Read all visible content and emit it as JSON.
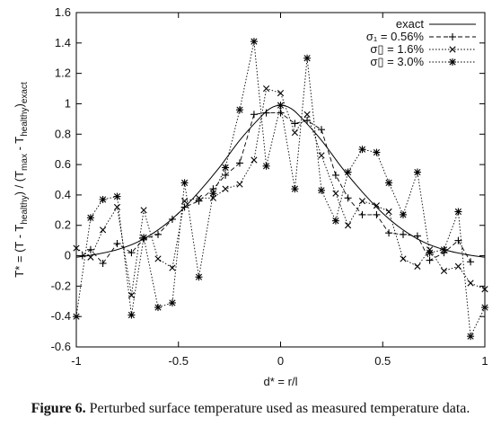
{
  "chart_data": {
    "type": "line",
    "xlabel": "d* = r/l",
    "ylabel_parts": {
      "base": "T* = (T - T",
      "sub1": "healthy",
      "mid": ") / (T",
      "sub2": "max",
      "mid2": " - T",
      "sub3": "healthy",
      "end": ")",
      "sub4": "exact"
    },
    "xlim": [
      -1,
      1
    ],
    "ylim": [
      -0.6,
      1.6
    ],
    "xticks": [
      -1,
      -0.5,
      0,
      0.5,
      1
    ],
    "xtick_labels": [
      "-1",
      "-0.5",
      "0",
      "0.5",
      "1"
    ],
    "yticks": [
      -0.6,
      -0.4,
      -0.2,
      0,
      0.2,
      0.4,
      0.6,
      0.8,
      1,
      1.2,
      1.4,
      1.6
    ],
    "ytick_labels": [
      "-0.6",
      "-0.4",
      "-0.2",
      "0",
      "0.2",
      "0.4",
      "0.6",
      "0.8",
      "1",
      "1.2",
      "1.4",
      "1.6"
    ],
    "grid": false,
    "legend_position": "top-right",
    "series": [
      {
        "name": "exact",
        "style": "solid",
        "marker": "none",
        "x": [
          -1,
          -0.9,
          -0.8,
          -0.7,
          -0.6,
          -0.5,
          -0.4,
          -0.3,
          -0.2,
          -0.1,
          -0.05,
          0,
          0.05,
          0.1,
          0.2,
          0.3,
          0.4,
          0.5,
          0.6,
          0.7,
          0.8,
          0.9,
          1
        ],
        "y": [
          -0.01,
          0.01,
          0.04,
          0.09,
          0.17,
          0.28,
          0.42,
          0.58,
          0.76,
          0.91,
          0.97,
          0.99,
          0.97,
          0.91,
          0.76,
          0.58,
          0.42,
          0.28,
          0.17,
          0.09,
          0.04,
          0.01,
          -0.01
        ]
      },
      {
        "name": "σ₁ = 0.56%",
        "style": "dashed",
        "marker": "plus",
        "x": [
          -0.97,
          -0.93,
          -0.87,
          -0.8,
          -0.73,
          -0.67,
          -0.6,
          -0.53,
          -0.47,
          -0.4,
          -0.33,
          -0.27,
          -0.2,
          -0.13,
          -0.07,
          0,
          0.07,
          0.13,
          0.2,
          0.27,
          0.33,
          0.4,
          0.47,
          0.53,
          0.6,
          0.67,
          0.73,
          0.8,
          0.87,
          0.93
        ],
        "y": [
          0.0,
          0.04,
          -0.05,
          0.08,
          0.02,
          0.11,
          0.14,
          0.24,
          0.32,
          0.36,
          0.44,
          0.53,
          0.61,
          0.93,
          0.94,
          0.94,
          0.87,
          0.89,
          0.83,
          0.53,
          0.38,
          0.27,
          0.27,
          0.15,
          0.14,
          0.13,
          -0.03,
          0.02,
          0.1,
          -0.04
        ]
      },
      {
        "name": "σ▯ = 1.6%",
        "style": "dotted",
        "marker": "x",
        "x": [
          -1,
          -0.93,
          -0.87,
          -0.8,
          -0.73,
          -0.67,
          -0.6,
          -0.53,
          -0.47,
          -0.4,
          -0.33,
          -0.27,
          -0.2,
          -0.13,
          -0.07,
          0,
          0.07,
          0.13,
          0.2,
          0.27,
          0.33,
          0.4,
          0.47,
          0.53,
          0.6,
          0.67,
          0.73,
          0.8,
          0.87,
          0.93,
          1
        ],
        "y": [
          0.05,
          -0.01,
          0.17,
          0.32,
          -0.26,
          0.3,
          -0.02,
          -0.08,
          0.36,
          0.38,
          0.38,
          0.44,
          0.47,
          0.63,
          1.1,
          1.07,
          0.81,
          0.93,
          0.66,
          0.41,
          0.2,
          0.36,
          0.33,
          0.29,
          -0.02,
          -0.07,
          0.04,
          -0.1,
          -0.07,
          -0.18,
          -0.22
        ]
      },
      {
        "name": "σ▯ = 3.0%",
        "style": "dotted",
        "marker": "star",
        "x": [
          -1,
          -0.93,
          -0.87,
          -0.8,
          -0.73,
          -0.67,
          -0.6,
          -0.53,
          -0.47,
          -0.4,
          -0.33,
          -0.27,
          -0.2,
          -0.13,
          -0.07,
          0,
          0.07,
          0.13,
          0.2,
          0.27,
          0.33,
          0.4,
          0.47,
          0.53,
          0.6,
          0.67,
          0.73,
          0.8,
          0.87,
          0.93,
          1
        ],
        "y": [
          -0.4,
          0.25,
          0.37,
          0.39,
          -0.39,
          0.12,
          -0.34,
          -0.31,
          0.48,
          -0.14,
          0.41,
          0.58,
          0.96,
          1.41,
          0.59,
          0.99,
          0.44,
          1.3,
          0.43,
          0.23,
          0.55,
          0.7,
          0.68,
          0.48,
          0.27,
          0.55,
          0.02,
          0.04,
          0.29,
          -0.53,
          -0.34
        ]
      }
    ]
  },
  "caption": {
    "label": "Figure 6.",
    "text": " Perturbed surface temperature used as measured temperature data."
  }
}
